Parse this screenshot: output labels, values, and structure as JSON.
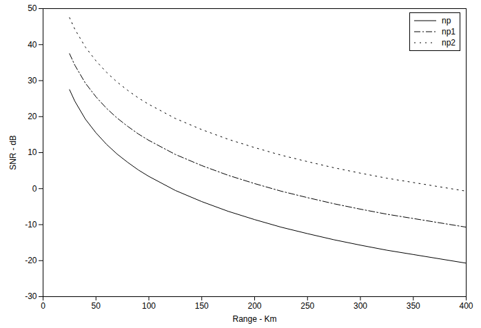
{
  "chart_data": {
    "type": "line",
    "x_label": "Range - Km",
    "y_label": "SNR - dB",
    "x": [
      25,
      30,
      40,
      50,
      60,
      70,
      80,
      90,
      100,
      125,
      150,
      175,
      200,
      225,
      250,
      275,
      300,
      325,
      350,
      375,
      400
    ],
    "series": [
      {
        "name": "np",
        "color": "#000000",
        "line_style": "solid",
        "values": [
          27.5,
          24.3,
          19.3,
          15.5,
          12.3,
          9.6,
          7.3,
          5.2,
          3.4,
          -0.5,
          -3.6,
          -6.3,
          -8.6,
          -10.7,
          -12.5,
          -14.2,
          -15.7,
          -17.1,
          -18.3,
          -19.5,
          -20.7
        ]
      },
      {
        "name": "np1",
        "color": "#000000",
        "line_style": "dashdot",
        "values": [
          37.5,
          34.3,
          29.3,
          25.5,
          22.3,
          19.6,
          17.3,
          15.2,
          13.4,
          9.5,
          6.4,
          3.7,
          1.4,
          -0.7,
          -2.5,
          -4.2,
          -5.7,
          -7.1,
          -8.3,
          -9.5,
          -10.7
        ]
      },
      {
        "name": "np2",
        "color": "#000000",
        "line_style": "dotted",
        "values": [
          47.5,
          44.3,
          39.3,
          35.5,
          32.3,
          29.6,
          27.3,
          25.2,
          23.4,
          19.5,
          16.4,
          13.7,
          11.4,
          9.3,
          7.5,
          5.8,
          4.3,
          2.9,
          1.7,
          0.5,
          -0.7
        ]
      }
    ],
    "xlim": [
      0,
      400
    ],
    "ylim": [
      -30,
      50
    ],
    "xticks": [
      0,
      50,
      100,
      150,
      200,
      250,
      300,
      350,
      400
    ],
    "yticks": [
      -30,
      -20,
      -10,
      0,
      10,
      20,
      30,
      40,
      50
    ],
    "grid": false,
    "legend": "upper right"
  }
}
